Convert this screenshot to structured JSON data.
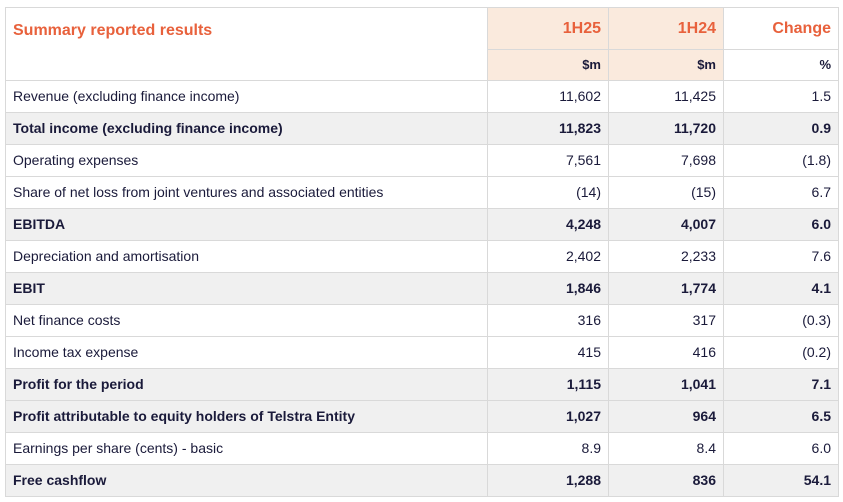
{
  "table": {
    "title": "Summary reported results",
    "headers": [
      "1H25",
      "1H24",
      "Change"
    ],
    "units": [
      "$m",
      "$m",
      "%"
    ],
    "rows": [
      {
        "label": "Revenue (excluding finance income)",
        "h25": "11,602",
        "h24": "11,425",
        "change": "1.5",
        "bold": false
      },
      {
        "label": "Total income (excluding finance income)",
        "h25": "11,823",
        "h24": "11,720",
        "change": "0.9",
        "bold": true
      },
      {
        "label": "Operating expenses",
        "h25": "7,561",
        "h24": "7,698",
        "change": "(1.8)",
        "bold": false
      },
      {
        "label": "Share of net loss from joint ventures and associated entities",
        "h25": "(14)",
        "h24": "(15)",
        "change": "6.7",
        "bold": false
      },
      {
        "label": "EBITDA",
        "h25": "4,248",
        "h24": "4,007",
        "change": "6.0",
        "bold": true
      },
      {
        "label": "Depreciation and amortisation",
        "h25": "2,402",
        "h24": "2,233",
        "change": "7.6",
        "bold": false
      },
      {
        "label": "EBIT",
        "h25": "1,846",
        "h24": "1,774",
        "change": "4.1",
        "bold": true
      },
      {
        "label": "Net finance costs",
        "h25": "316",
        "h24": "317",
        "change": "(0.3)",
        "bold": false
      },
      {
        "label": "Income tax expense",
        "h25": "415",
        "h24": "416",
        "change": "(0.2)",
        "bold": false
      },
      {
        "label": "Profit for the period",
        "h25": "1,115",
        "h24": "1,041",
        "change": "7.1",
        "bold": true
      },
      {
        "label": "Profit attributable to equity holders of Telstra Entity",
        "h25": "1,027",
        "h24": "964",
        "change": "6.5",
        "bold": true
      },
      {
        "label": "Earnings per share (cents) - basic",
        "h25": "8.9",
        "h24": "8.4",
        "change": "6.0",
        "bold": false
      },
      {
        "label": "Free cashflow",
        "h25": "1,288",
        "h24": "836",
        "change": "54.1",
        "bold": true
      }
    ]
  },
  "colors": {
    "accent": "#e8613c",
    "header_shade": "#faeadd",
    "bold_row_shade": "#f0f0f0",
    "text": "#1a1a3a",
    "border": "#d9d9d9"
  }
}
